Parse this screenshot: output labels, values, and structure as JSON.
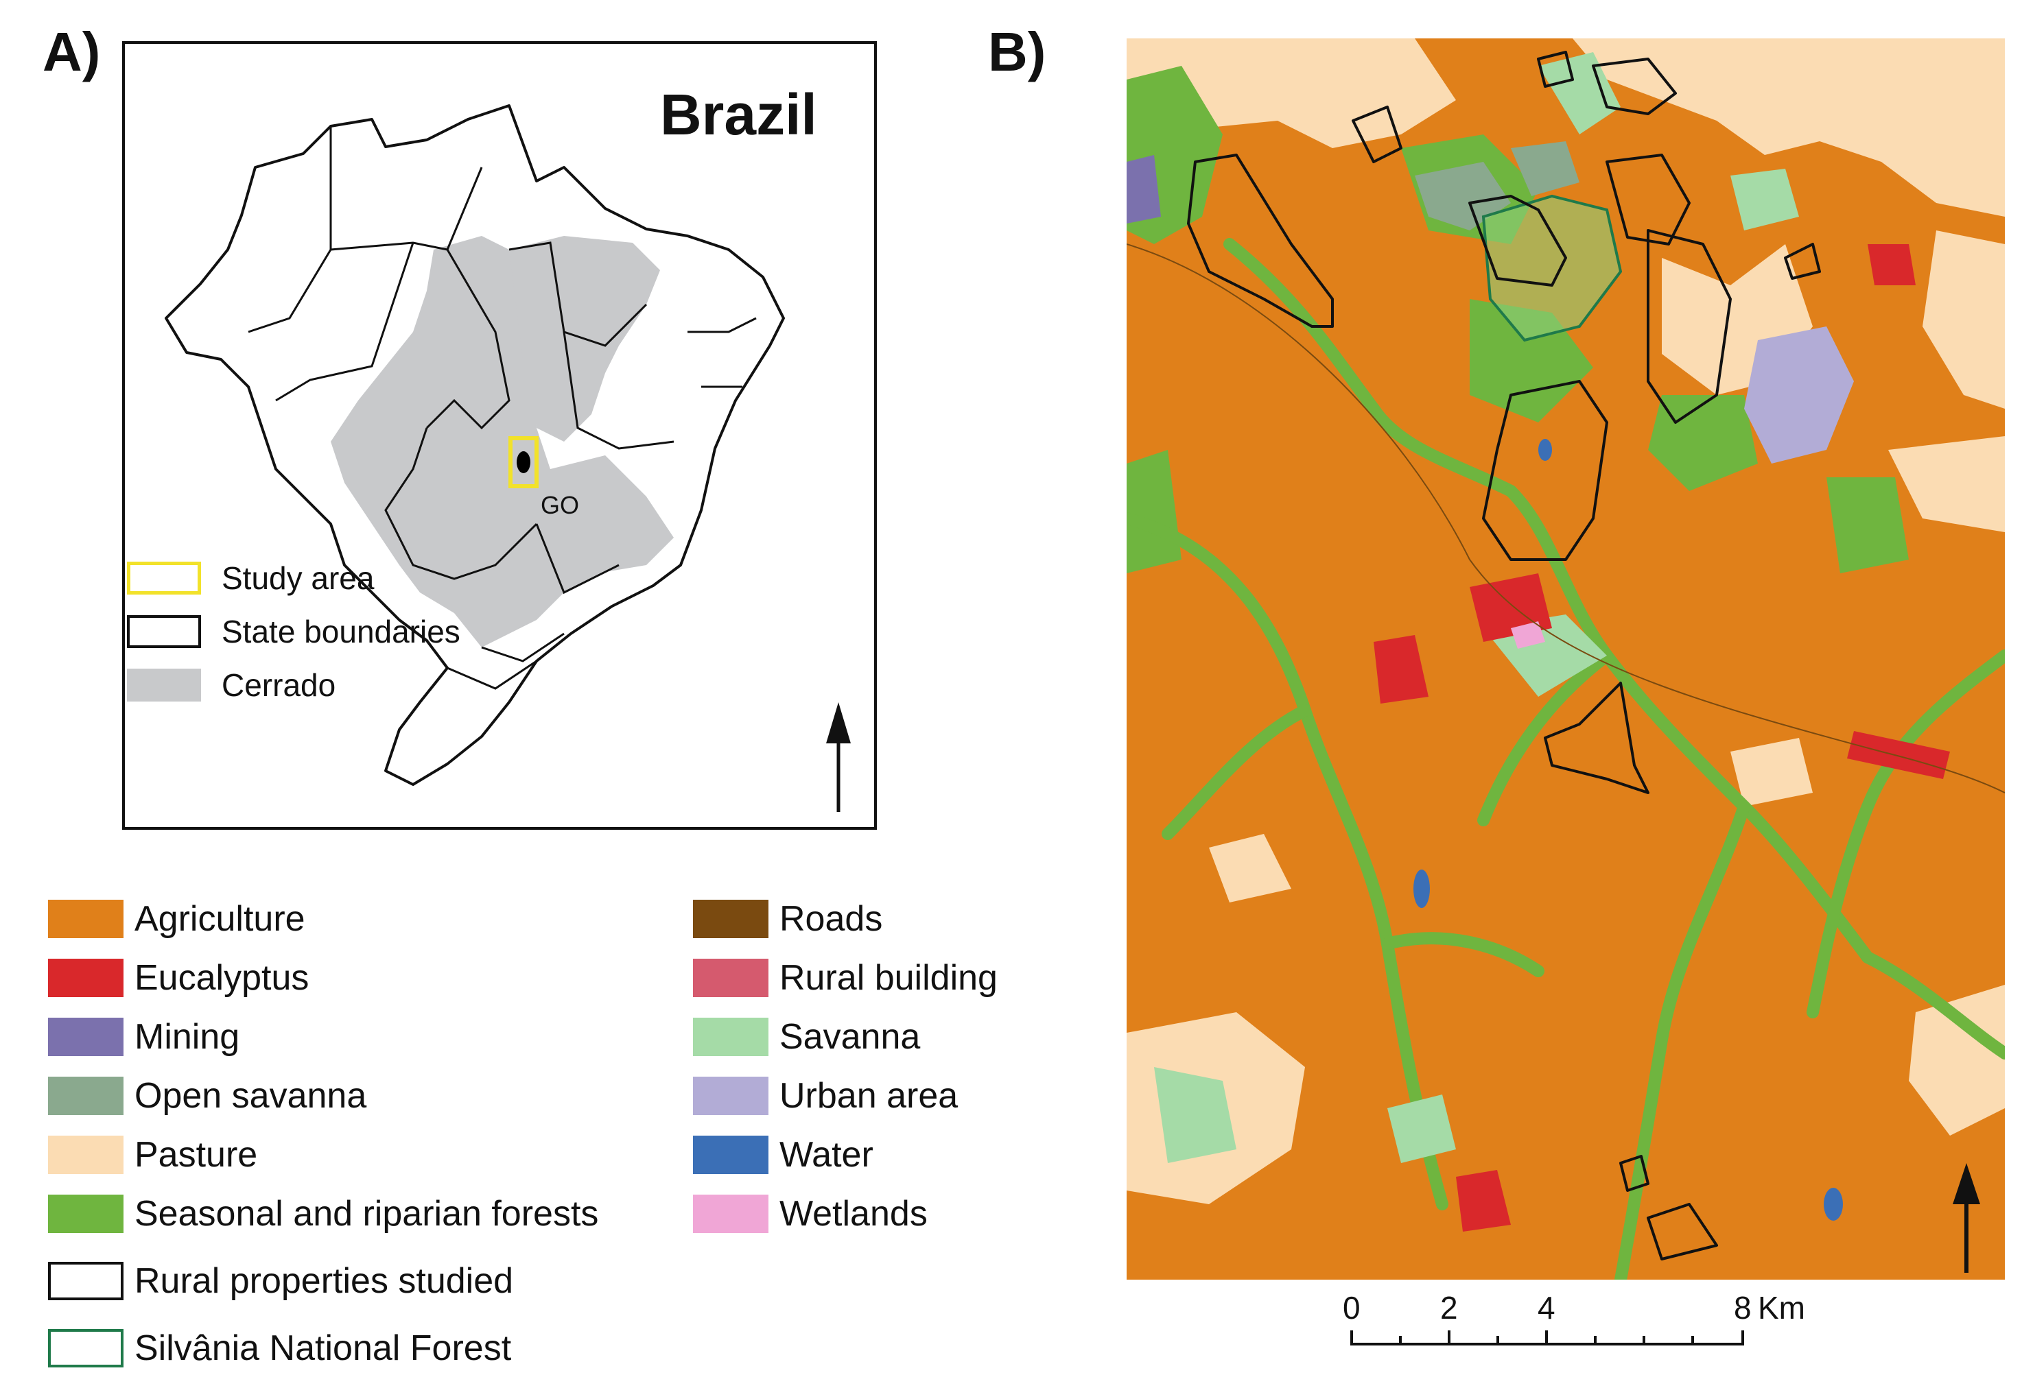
{
  "panels": {
    "a_label": "A)",
    "b_label": "B)"
  },
  "inset": {
    "country": "Brazil",
    "state_label": "GO",
    "legend": [
      {
        "label": "Study area",
        "style": "outline",
        "color": "#f2e22a"
      },
      {
        "label": "State boundaries",
        "style": "outline",
        "color": "#111111"
      },
      {
        "label": "Cerrado",
        "style": "fill",
        "color": "#c8c9cb"
      }
    ]
  },
  "legend": {
    "left_column": [
      {
        "label": "Agriculture",
        "color": "#e0801a"
      },
      {
        "label": "Eucalyptus",
        "color": "#d9282b"
      },
      {
        "label": "Mining",
        "color": "#7b71ad"
      },
      {
        "label": "Open savanna",
        "color": "#8aa98e"
      },
      {
        "label": "Pasture",
        "color": "#fbdcb3"
      },
      {
        "label": "Seasonal and riparian forests",
        "color": "#6fb53f"
      }
    ],
    "right_column": [
      {
        "label": "Roads",
        "color": "#7a4a10"
      },
      {
        "label": "Rural building",
        "color": "#d55a6e"
      },
      {
        "label": "Savanna",
        "color": "#a5dba7"
      },
      {
        "label": "Urban area",
        "color": "#b2acd6"
      },
      {
        "label": "Water",
        "color": "#3b6fb6"
      },
      {
        "label": "Wetlands",
        "color": "#f0a6d6"
      }
    ],
    "outlines": [
      {
        "label": "Rural properties studied",
        "color": "#111111"
      },
      {
        "label": "Silvânia National Forest",
        "color": "#1f7a4a"
      }
    ]
  },
  "scale_bar": {
    "ticks": [
      "0",
      "2",
      "4",
      "8"
    ],
    "unit": "Km"
  },
  "north_arrows": [
    "north-arrow-inset",
    "north-arrow-map"
  ]
}
